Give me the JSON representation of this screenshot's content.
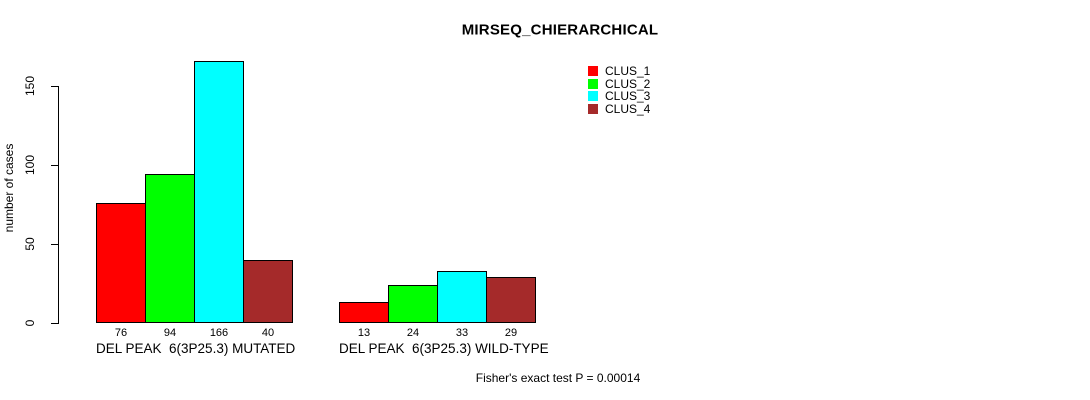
{
  "chart_data": {
    "type": "bar",
    "title": "MIRSEQ_CHIERARCHICAL",
    "ylabel": "number of cases",
    "xlabel": "",
    "categories": [
      "DEL PEAK  6(3P25.3) MUTATED",
      "DEL PEAK  6(3P25.3) WILD-TYPE"
    ],
    "series": [
      {
        "name": "CLUS_1",
        "color": "#FF0000",
        "values": [
          76,
          13
        ]
      },
      {
        "name": "CLUS_2",
        "color": "#00FF00",
        "values": [
          94,
          24
        ]
      },
      {
        "name": "CLUS_3",
        "color": "#00FFFF",
        "values": [
          166,
          33
        ]
      },
      {
        "name": "CLUS_4",
        "color": "#A52A2A",
        "values": [
          40,
          29
        ]
      }
    ],
    "bar_value_labels": [
      [
        76,
        94,
        166,
        40
      ],
      [
        13,
        24,
        33,
        29
      ]
    ],
    "yticks": [
      0,
      50,
      100,
      150
    ],
    "ylim": [
      0,
      166
    ],
    "grid": false,
    "legend_position": "top-right",
    "annotation": "Fisher's exact test P = 0.00014",
    "axis_color": "#000000",
    "bar_border_color": "#000000",
    "background_color": "#FFFFFF"
  }
}
